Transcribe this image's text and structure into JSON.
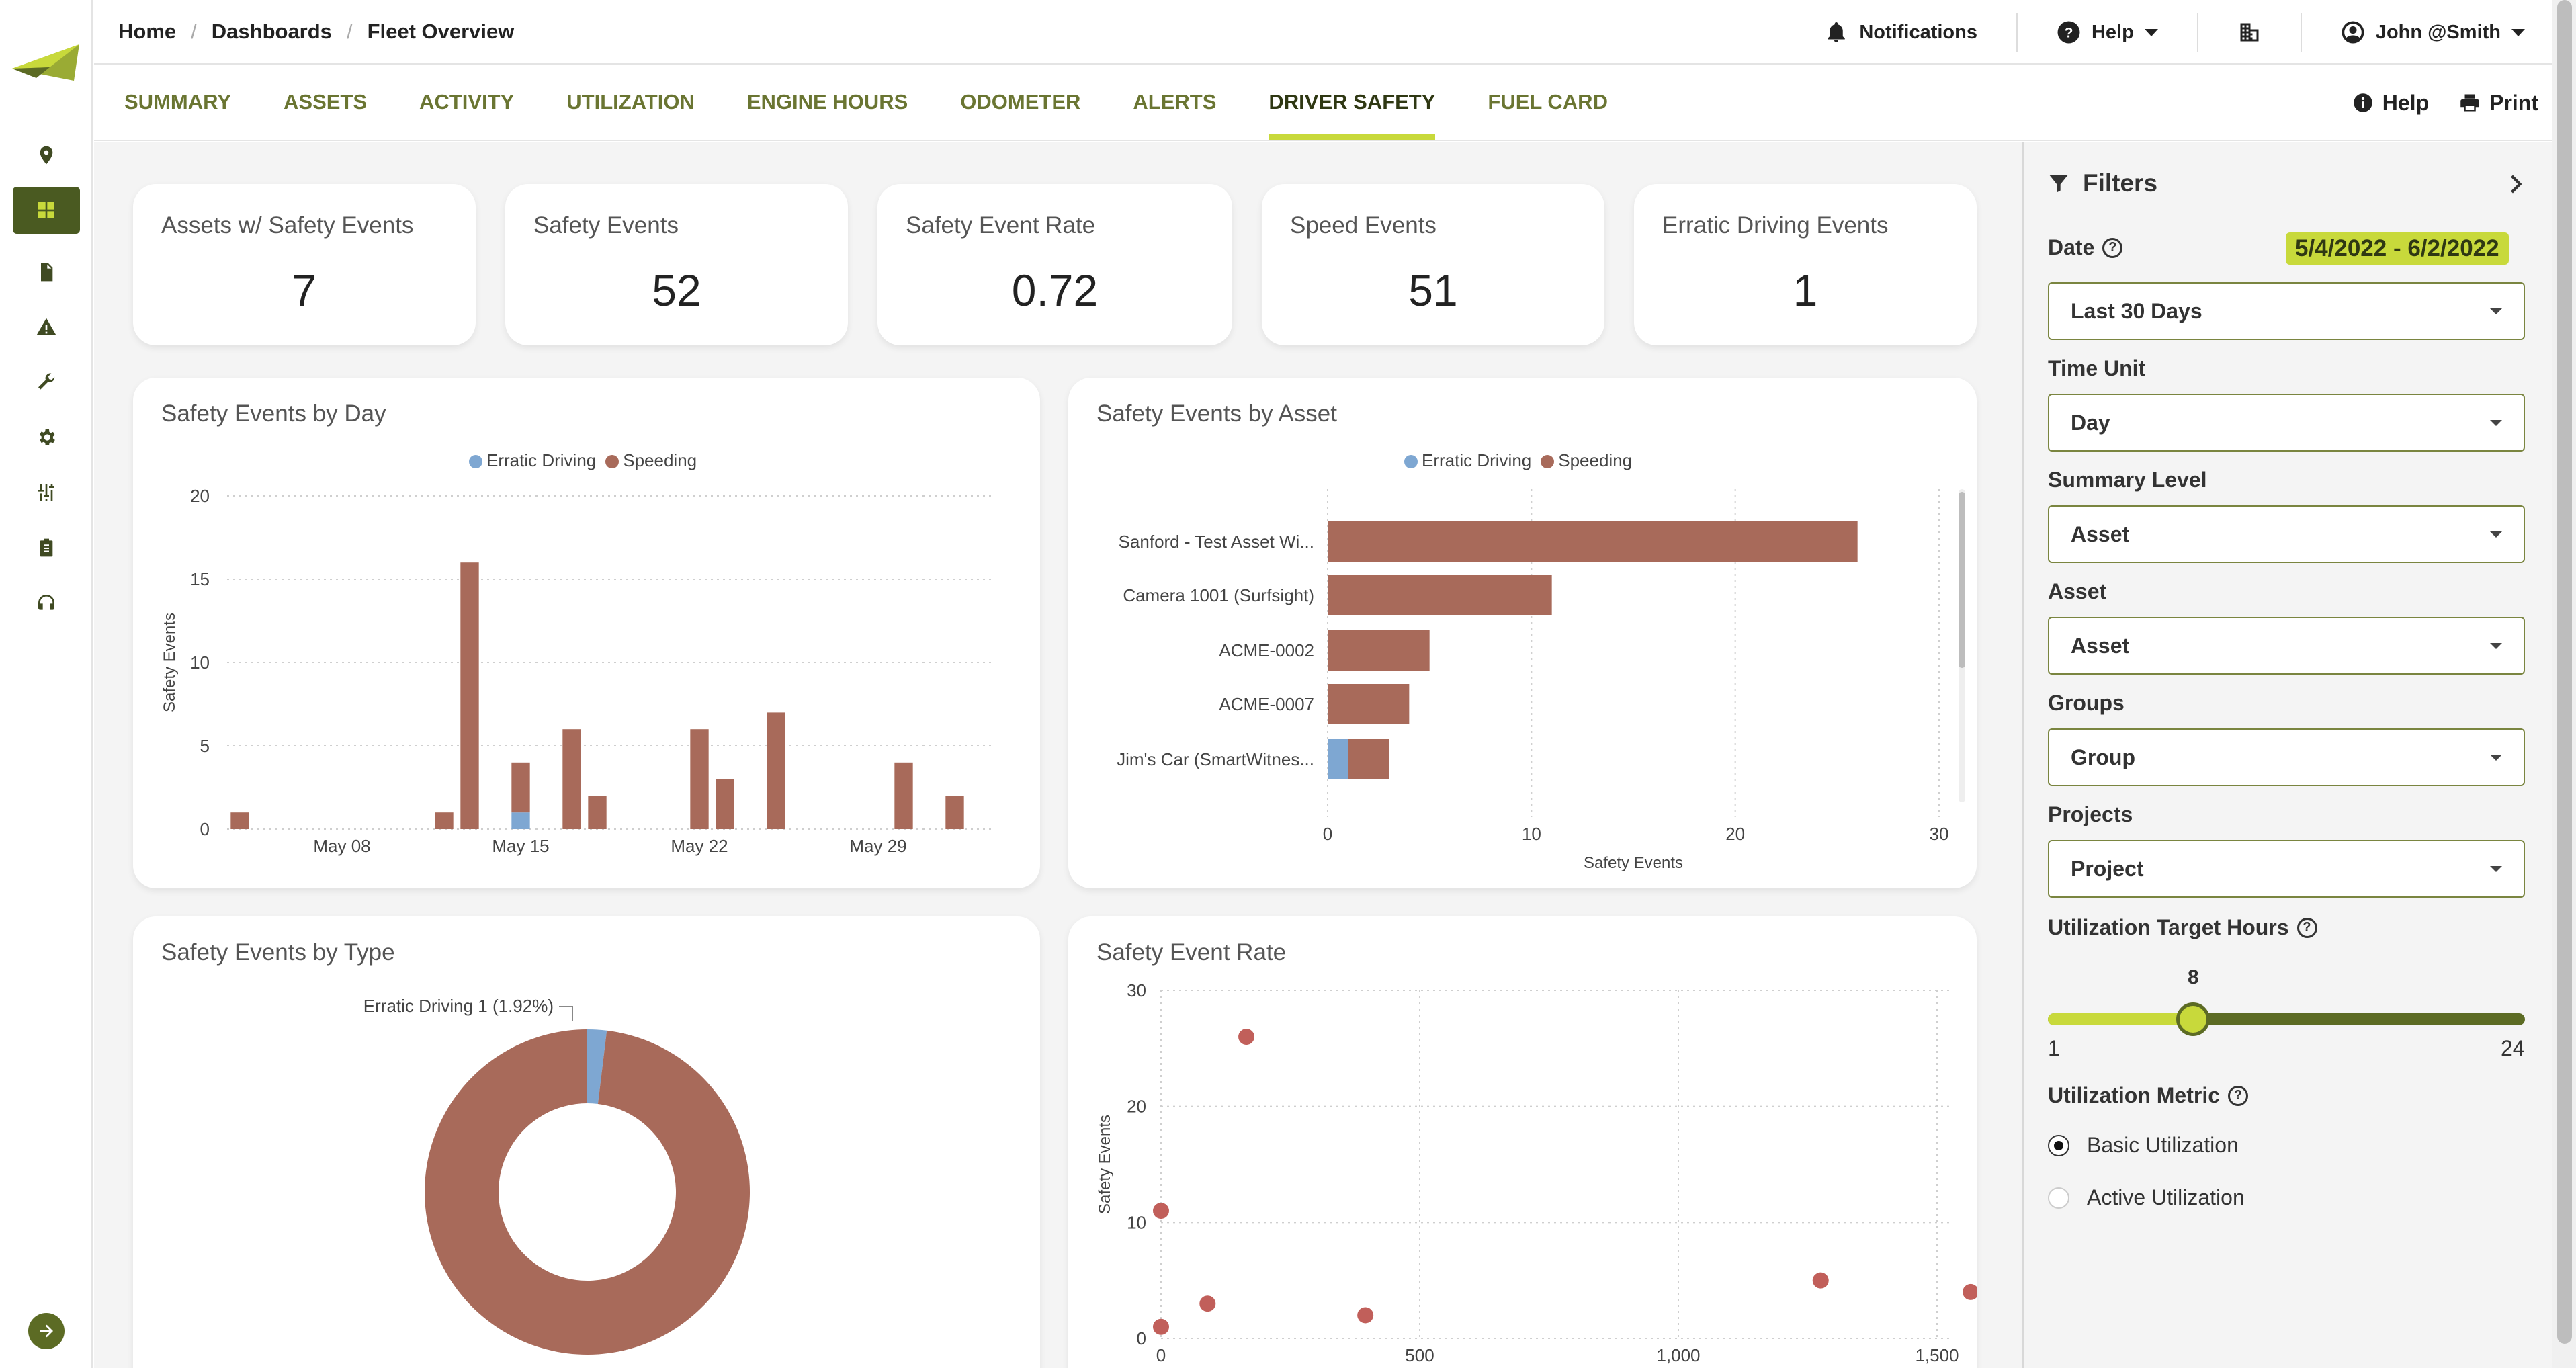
{
  "breadcrumb": [
    "Home",
    "Dashboards",
    "Fleet Overview"
  ],
  "topbar": {
    "notifications_label": "Notifications",
    "help_label": "Help",
    "user_label": "John @Smith"
  },
  "tabs": [
    {
      "label": "SUMMARY",
      "active": false
    },
    {
      "label": "ASSETS",
      "active": false
    },
    {
      "label": "ACTIVITY",
      "active": false
    },
    {
      "label": "UTILIZATION",
      "active": false
    },
    {
      "label": "ENGINE HOURS",
      "active": false
    },
    {
      "label": "ODOMETER",
      "active": false
    },
    {
      "label": "ALERTS",
      "active": false
    },
    {
      "label": "DRIVER SAFETY",
      "active": true
    },
    {
      "label": "FUEL CARD",
      "active": false
    }
  ],
  "tabs_right": {
    "help_label": "Help",
    "print_label": "Print"
  },
  "rail_icons": [
    "location-icon",
    "dashboard-icon",
    "document-icon",
    "warning-icon",
    "wrench-icon",
    "settings-icon",
    "sliders-icon",
    "clipboard-icon",
    "headset-icon"
  ],
  "kpis": [
    {
      "label": "Assets w/ Safety Events",
      "value": "7"
    },
    {
      "label": "Safety Events",
      "value": "52"
    },
    {
      "label": "Safety Event Rate",
      "value": "0.72"
    },
    {
      "label": "Speed Events",
      "value": "51"
    },
    {
      "label": "Erratic Driving Events",
      "value": "1"
    }
  ],
  "colors": {
    "speeding": "#a86a5a",
    "erratic": "#7ea7d2",
    "accent": "#c8d93b",
    "brand_dark": "#4a5a21"
  },
  "cards": {
    "by_day_title": "Safety Events by Day",
    "by_asset_title": "Safety Events by Asset",
    "by_type_title": "Safety Events by Type",
    "rate_title": "Safety Event Rate"
  },
  "legend": {
    "erratic": "Erratic Driving",
    "speeding": "Speeding"
  },
  "chart_data": [
    {
      "type": "bar",
      "title": "Safety Events by Day",
      "ylabel": "Safety Events",
      "ylim": [
        0,
        20
      ],
      "yticks": [
        0,
        5,
        10,
        15,
        20
      ],
      "xticks": [
        "May 08",
        "May 15",
        "May 22",
        "May 29"
      ],
      "x": [
        "May 04",
        "May 05",
        "May 06",
        "May 07",
        "May 08",
        "May 09",
        "May 10",
        "May 11",
        "May 12",
        "May 13",
        "May 14",
        "May 15",
        "May 16",
        "May 17",
        "May 18",
        "May 19",
        "May 20",
        "May 21",
        "May 22",
        "May 23",
        "May 24",
        "May 25",
        "May 26",
        "May 27",
        "May 28",
        "May 29",
        "May 30",
        "May 31",
        "Jun 01",
        "Jun 02"
      ],
      "series": [
        {
          "name": "Erratic Driving",
          "values": [
            0,
            0,
            0,
            0,
            0,
            0,
            0,
            0,
            0,
            0,
            0,
            1,
            0,
            0,
            0,
            0,
            0,
            0,
            0,
            0,
            0,
            0,
            0,
            0,
            0,
            0,
            0,
            0,
            0,
            0
          ]
        },
        {
          "name": "Speeding",
          "values": [
            1,
            0,
            0,
            0,
            0,
            0,
            0,
            0,
            1,
            16,
            0,
            3,
            0,
            6,
            2,
            0,
            0,
            0,
            6,
            3,
            0,
            7,
            0,
            0,
            0,
            0,
            4,
            0,
            2,
            0
          ]
        }
      ],
      "stacked": true,
      "grid": true,
      "legend_position": "top"
    },
    {
      "type": "bar",
      "orientation": "horizontal",
      "title": "Safety Events by Asset",
      "xlabel": "Safety Events",
      "xlim": [
        0,
        30
      ],
      "xticks": [
        0,
        10,
        20,
        30
      ],
      "categories": [
        "Sanford - Test Asset Wi...",
        "Camera 1001 (Surfsight)",
        "ACME-0002",
        "ACME-0007",
        "Jim's Car (SmartWitnes..."
      ],
      "series": [
        {
          "name": "Erratic Driving",
          "values": [
            0,
            0,
            0,
            0,
            1
          ]
        },
        {
          "name": "Speeding",
          "values": [
            26,
            11,
            5,
            4,
            2
          ]
        }
      ],
      "stacked": true,
      "grid": true,
      "legend_position": "top"
    },
    {
      "type": "pie",
      "donut": true,
      "title": "Safety Events by Type",
      "slices": [
        {
          "name": "Erratic Driving",
          "value": 1,
          "percent": 1.92
        },
        {
          "name": "Speeding",
          "value": 51,
          "percent": 98.08
        }
      ],
      "annotation": "Erratic Driving 1 (1.92%)"
    },
    {
      "type": "scatter",
      "title": "Safety Event Rate",
      "ylabel": "Safety Events",
      "ylim": [
        0,
        30
      ],
      "yticks": [
        0,
        10,
        20,
        30
      ],
      "xlim": [
        0,
        1600
      ],
      "xticks": [
        "0",
        "500",
        "1,000",
        "1,500"
      ],
      "points": [
        [
          0,
          1
        ],
        [
          0,
          11
        ],
        [
          90,
          3
        ],
        [
          165,
          26
        ],
        [
          395,
          2
        ],
        [
          1275,
          5
        ],
        [
          1565,
          4
        ]
      ],
      "grid": true
    }
  ],
  "filters": {
    "title": "Filters",
    "date_label": "Date",
    "date_range": "5/4/2022 - 6/2/2022",
    "date_value": "Last 30 Days",
    "time_unit_label": "Time Unit",
    "time_unit_value": "Day",
    "summary_level_label": "Summary Level",
    "summary_level_value": "Asset",
    "asset_label": "Asset",
    "asset_value": "Asset",
    "groups_label": "Groups",
    "groups_value": "Group",
    "projects_label": "Projects",
    "projects_value": "Project",
    "target_hours_label": "Utilization Target Hours",
    "target_hours_value": "8",
    "target_hours_fraction": 0.3043,
    "target_min": "1",
    "target_max": "24",
    "metric_label": "Utilization Metric",
    "metric_options": [
      {
        "label": "Basic Utilization",
        "selected": true
      },
      {
        "label": "Active Utilization",
        "selected": false
      }
    ]
  }
}
